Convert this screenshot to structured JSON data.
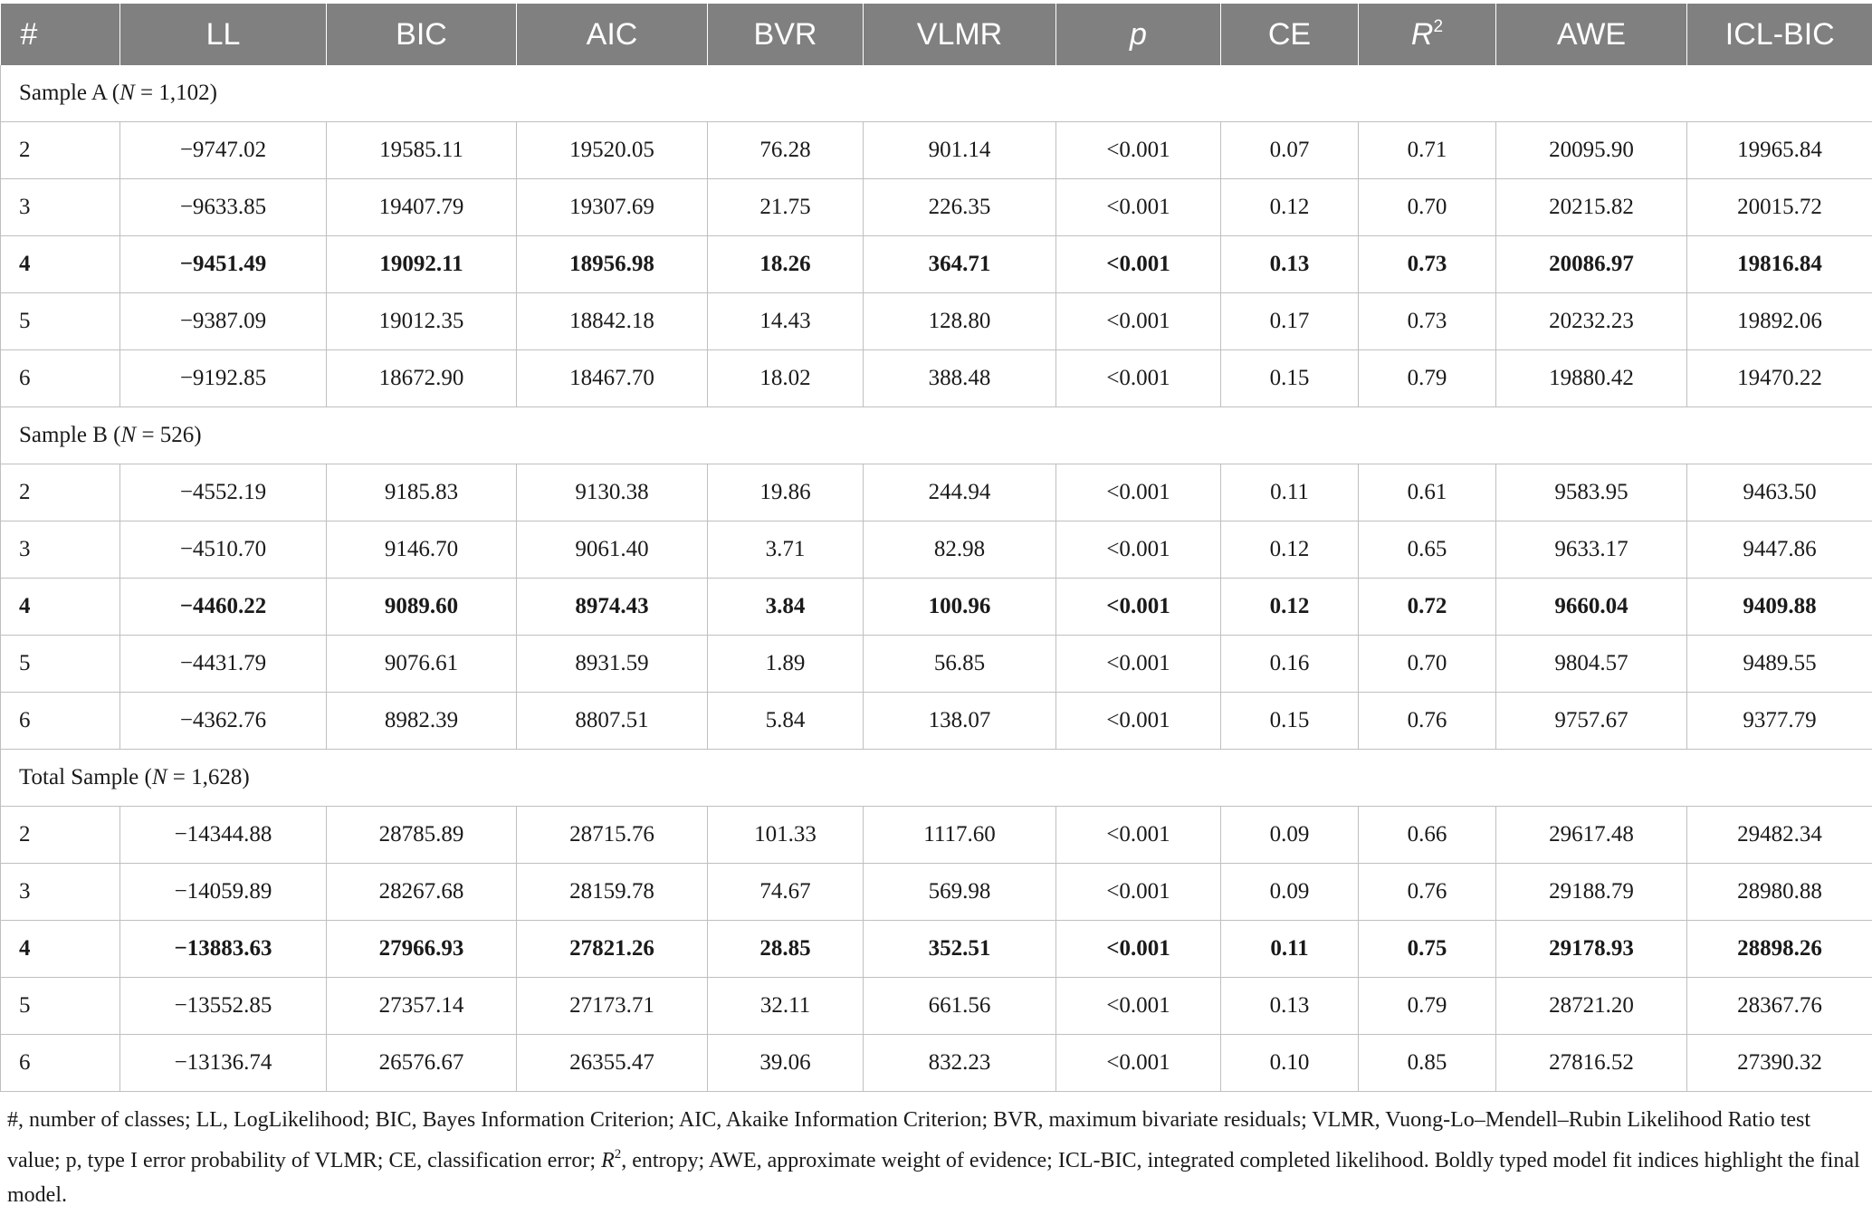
{
  "table": {
    "header": [
      "#",
      "LL",
      "BIC",
      "AIC",
      "BVR",
      "VLMR",
      "p",
      "CE",
      "R",
      "AWE",
      "ICL-BIC"
    ],
    "header_sup": {
      "r2": "2"
    },
    "sections": [
      {
        "label": "Sample A (",
        "n_symbol": "N",
        "n_value": " = 1,102)",
        "rows": [
          {
            "bold": false,
            "cells": [
              "2",
              "−9747.02",
              "19585.11",
              "19520.05",
              "76.28",
              "901.14",
              "<0.001",
              "0.07",
              "0.71",
              "20095.90",
              "19965.84"
            ]
          },
          {
            "bold": false,
            "cells": [
              "3",
              "−9633.85",
              "19407.79",
              "19307.69",
              "21.75",
              "226.35",
              "<0.001",
              "0.12",
              "0.70",
              "20215.82",
              "20015.72"
            ]
          },
          {
            "bold": true,
            "cells": [
              "4",
              "−9451.49",
              "19092.11",
              "18956.98",
              "18.26",
              "364.71",
              "<0.001",
              "0.13",
              "0.73",
              "20086.97",
              "19816.84"
            ]
          },
          {
            "bold": false,
            "cells": [
              "5",
              "−9387.09",
              "19012.35",
              "18842.18",
              "14.43",
              "128.80",
              "<0.001",
              "0.17",
              "0.73",
              "20232.23",
              "19892.06"
            ]
          },
          {
            "bold": false,
            "cells": [
              "6",
              "−9192.85",
              "18672.90",
              "18467.70",
              "18.02",
              "388.48",
              "<0.001",
              "0.15",
              "0.79",
              "19880.42",
              "19470.22"
            ]
          }
        ]
      },
      {
        "label": "Sample B (",
        "n_symbol": "N",
        "n_value": " = 526)",
        "rows": [
          {
            "bold": false,
            "cells": [
              "2",
              "−4552.19",
              "9185.83",
              "9130.38",
              "19.86",
              "244.94",
              "<0.001",
              "0.11",
              "0.61",
              "9583.95",
              "9463.50"
            ]
          },
          {
            "bold": false,
            "cells": [
              "3",
              "−4510.70",
              "9146.70",
              "9061.40",
              "3.71",
              "82.98",
              "<0.001",
              "0.12",
              "0.65",
              "9633.17",
              "9447.86"
            ]
          },
          {
            "bold": true,
            "cells": [
              "4",
              "−4460.22",
              "9089.60",
              "8974.43",
              "3.84",
              "100.96",
              "<0.001",
              "0.12",
              "0.72",
              "9660.04",
              "9409.88"
            ]
          },
          {
            "bold": false,
            "cells": [
              "5",
              "−4431.79",
              "9076.61",
              "8931.59",
              "1.89",
              "56.85",
              "<0.001",
              "0.16",
              "0.70",
              "9804.57",
              "9489.55"
            ]
          },
          {
            "bold": false,
            "cells": [
              "6",
              "−4362.76",
              "8982.39",
              "8807.51",
              "5.84",
              "138.07",
              "<0.001",
              "0.15",
              "0.76",
              "9757.67",
              "9377.79"
            ]
          }
        ]
      },
      {
        "label": "Total Sample (",
        "n_symbol": "N",
        "n_value": " = 1,628)",
        "rows": [
          {
            "bold": false,
            "cells": [
              "2",
              "−14344.88",
              "28785.89",
              "28715.76",
              "101.33",
              "1117.60",
              "<0.001",
              "0.09",
              "0.66",
              "29617.48",
              "29482.34"
            ]
          },
          {
            "bold": false,
            "cells": [
              "3",
              "−14059.89",
              "28267.68",
              "28159.78",
              "74.67",
              "569.98",
              "<0.001",
              "0.09",
              "0.76",
              "29188.79",
              "28980.88"
            ]
          },
          {
            "bold": true,
            "cells": [
              "4",
              "−13883.63",
              "27966.93",
              "27821.26",
              "28.85",
              "352.51",
              "<0.001",
              "0.11",
              "0.75",
              "29178.93",
              "28898.26"
            ]
          },
          {
            "bold": false,
            "cells": [
              "5",
              "−13552.85",
              "27357.14",
              "27173.71",
              "32.11",
              "661.56",
              "<0.001",
              "0.13",
              "0.79",
              "28721.20",
              "28367.76"
            ]
          },
          {
            "bold": false,
            "cells": [
              "6",
              "−13136.74",
              "26576.67",
              "26355.47",
              "39.06",
              "832.23",
              "<0.001",
              "0.10",
              "0.85",
              "27816.52",
              "27390.32"
            ]
          }
        ]
      }
    ]
  },
  "footnote": {
    "part1": "#, number of classes; LL, LogLikelihood; BIC, Bayes Information Criterion; AIC, Akaike Information Criterion; BVR, maximum bivariate residuals; VLMR, Vuong-Lo–Mendell–Rubin Likelihood Ratio test value; p, type I error probability of VLMR; CE, classification error; ",
    "r_letter": "R",
    "r_sup": "2",
    "part2": ", entropy; AWE, approximate weight of evidence; ICL-BIC, integrated completed likelihood. Boldly typed model fit indices highlight the final model."
  }
}
